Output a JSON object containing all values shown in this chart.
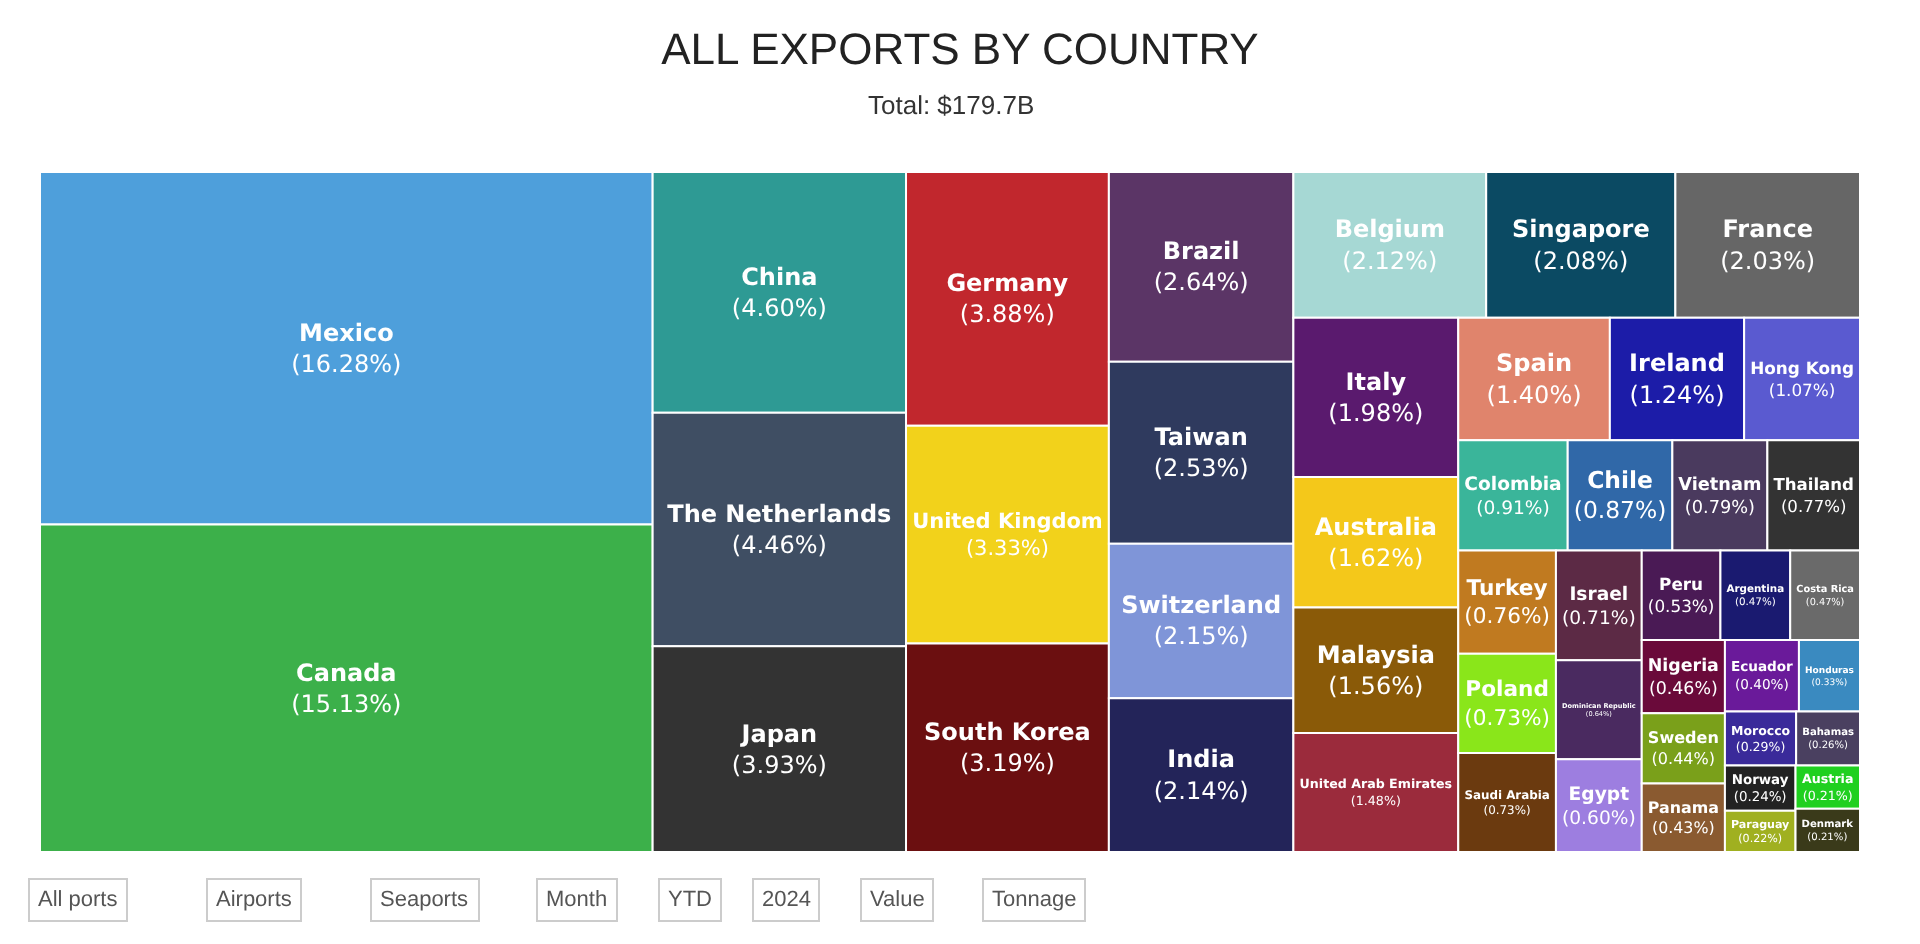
{
  "chart_data": {
    "type": "other",
    "title": "ALL EXPORTS BY COUNTRY",
    "subtitle": "Total: $179.7B",
    "categories": [
      "Mexico",
      "Canada",
      "China",
      "The Netherlands",
      "Japan",
      "Germany",
      "United Kingdom",
      "South Korea",
      "Brazil",
      "Taiwan",
      "Switzerland",
      "India",
      "Belgium",
      "Singapore",
      "France",
      "Italy",
      "Australia",
      "Malaysia",
      "United Arab Emirates",
      "Spain",
      "Ireland",
      "Hong Kong",
      "Poland",
      "Saudi Arabia",
      "Israel",
      "Dominican Republic",
      "Egypt",
      "Colombia",
      "Chile",
      "Vietnam",
      "Thailand",
      "Turkey",
      "Peru",
      "Argentina",
      "Costa Rica",
      "Nigeria",
      "Sweden",
      "Panama",
      "Ecuador",
      "Honduras",
      "Morocco",
      "Bahamas",
      "Norway",
      "Paraguay",
      "Austria",
      "Denmark"
    ],
    "values": [
      16.28,
      15.13,
      4.6,
      4.46,
      3.93,
      3.88,
      3.33,
      3.19,
      2.64,
      2.53,
      2.15,
      2.14,
      2.12,
      2.08,
      2.03,
      1.98,
      1.62,
      1.56,
      1.48,
      1.4,
      1.24,
      1.07,
      0.73,
      0.73,
      0.71,
      0.64,
      0.6,
      0.91,
      0.87,
      0.79,
      0.77,
      0.76,
      0.53,
      0.47,
      0.47,
      0.46,
      0.44,
      0.43,
      0.4,
      0.33,
      0.29,
      0.26,
      0.24,
      0.22,
      0.21,
      0.21
    ],
    "value_labels": [
      "(16.28%)",
      "(15.13%)",
      "(4.60%)",
      "(4.46%)",
      "(3.93%)",
      "(3.88%)",
      "(3.33%)",
      "(3.19%)",
      "(2.64%)",
      "(2.53%)",
      "(2.15%)",
      "(2.14%)",
      "(2.12%)",
      "(2.08%)",
      "(2.03%)",
      "(1.98%)",
      "(1.62%)",
      "(1.56%)",
      "(1.48%)",
      "(1.40%)",
      "(1.24%)",
      "(1.07%)",
      "(0.73%)",
      "(0.73%)",
      "(0.71%)",
      "(0.64%)",
      "(0.60%)",
      "(0.91%)",
      "(0.87%)",
      "(0.79%)",
      "(0.77%)",
      "(0.76%)",
      "(0.53%)",
      "(0.47%)",
      "(0.47%)",
      "(0.46%)",
      "(0.44%)",
      "(0.43%)",
      "(0.40%)",
      "(0.33%)",
      "(0.29%)",
      "(0.26%)",
      "(0.24%)",
      "(0.22%)",
      "(0.21%)",
      "(0.21%)"
    ],
    "colors": [
      "#4e9fdb",
      "#3cb04a",
      "#2e9a94",
      "#3f4e63",
      "#333333",
      "#c1272d",
      "#f2d21b",
      "#6b0f10",
      "#5b3566",
      "#2f3a5e",
      "#7f95d8",
      "#232459",
      "#a6d8d4",
      "#0b4a63",
      "#666666",
      "#5a1a6e",
      "#f4c81a",
      "#8a5a08",
      "#9b2b3c",
      "#e0846c",
      "#1c1ca8",
      "#5a5ad0",
      "#8ae61a",
      "#6b3a0f",
      "#5c2a45",
      "#4a2a60",
      "#9d7ee0",
      "#3ab59a",
      "#3068a8",
      "#4a3a5e",
      "#333333",
      "#c07a20",
      "#4a1a55",
      "#1a1a70",
      "#6a6a6a",
      "#6a0a3a",
      "#7aa01a",
      "#8a5a30",
      "#6a1a9a",
      "#3a8ac0",
      "#3a2a9a",
      "#4a4060",
      "#222222",
      "#a0b020",
      "#20d020",
      "#3a3a1a"
    ],
    "annotations": [
      "All ports",
      "Airports",
      "Seaports",
      "Month",
      "YTD",
      "2024",
      "Value",
      "Tonnage"
    ]
  }
}
